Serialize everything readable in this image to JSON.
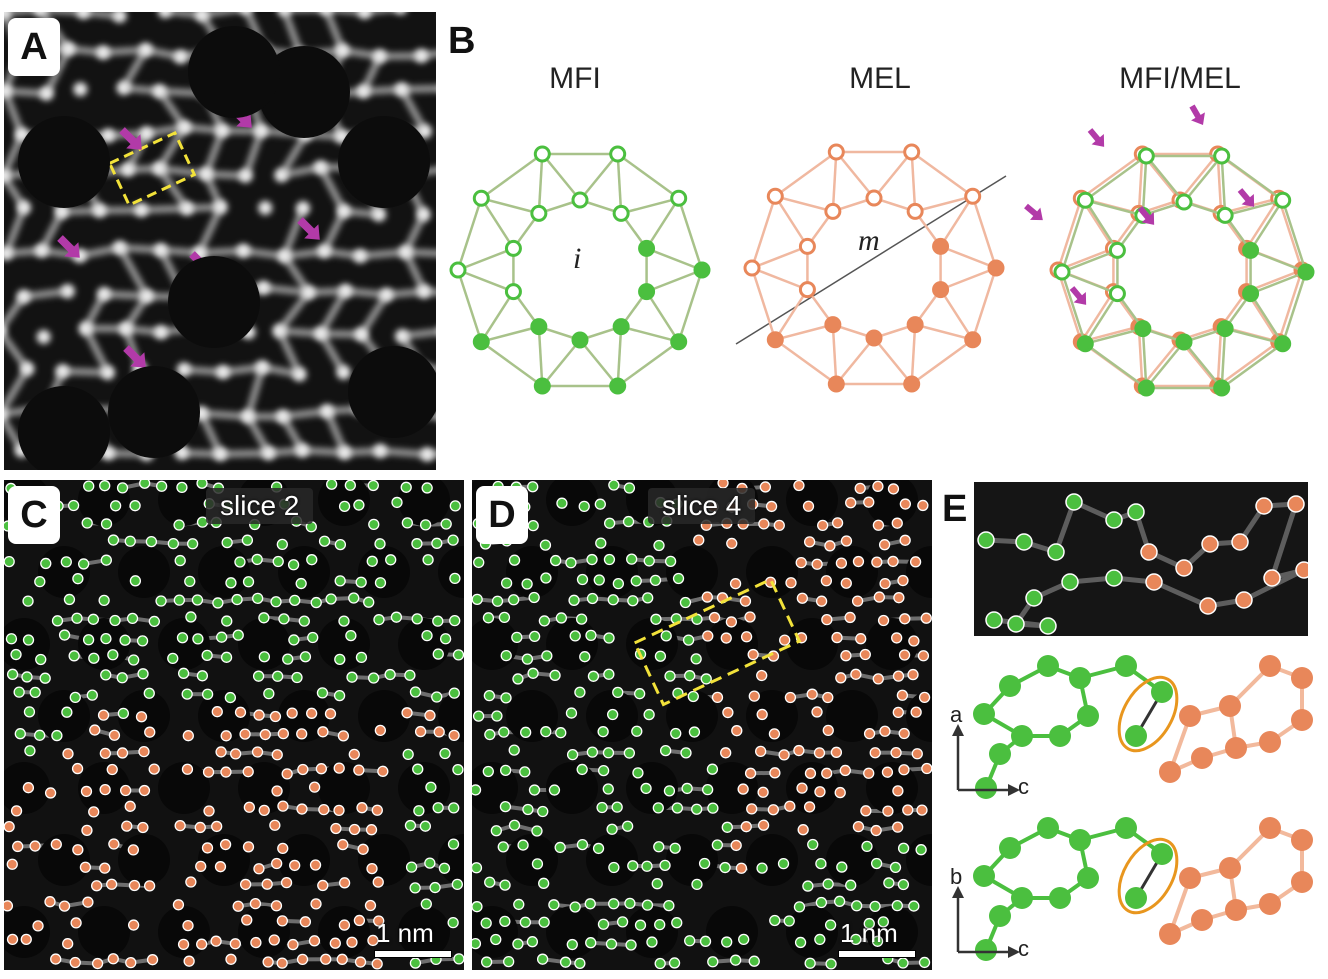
{
  "panels": {
    "a": {
      "letter": "A"
    },
    "b": {
      "letter": "B",
      "titles": [
        "MFI",
        "MEL",
        "MFI/MEL"
      ],
      "ring_labels": [
        "i",
        "m"
      ]
    },
    "c": {
      "letter": "C",
      "slice_label": "slice 2",
      "scale_label": "1 nm"
    },
    "d": {
      "letter": "D",
      "slice_label": "slice 4",
      "scale_label": "1 nm"
    },
    "e": {
      "letter": "E",
      "axes": [
        {
          "vertical": "a",
          "horizontal": "c"
        },
        {
          "vertical": "b",
          "horizontal": "c"
        }
      ]
    }
  },
  "colors": {
    "mfi_green": "#4bbf3f",
    "mel_orange": "#e8875a",
    "arrow_magenta": "#b23aa8",
    "highlight_yellow": "#f2e23a",
    "ellipse_orange": "#e8961e"
  }
}
